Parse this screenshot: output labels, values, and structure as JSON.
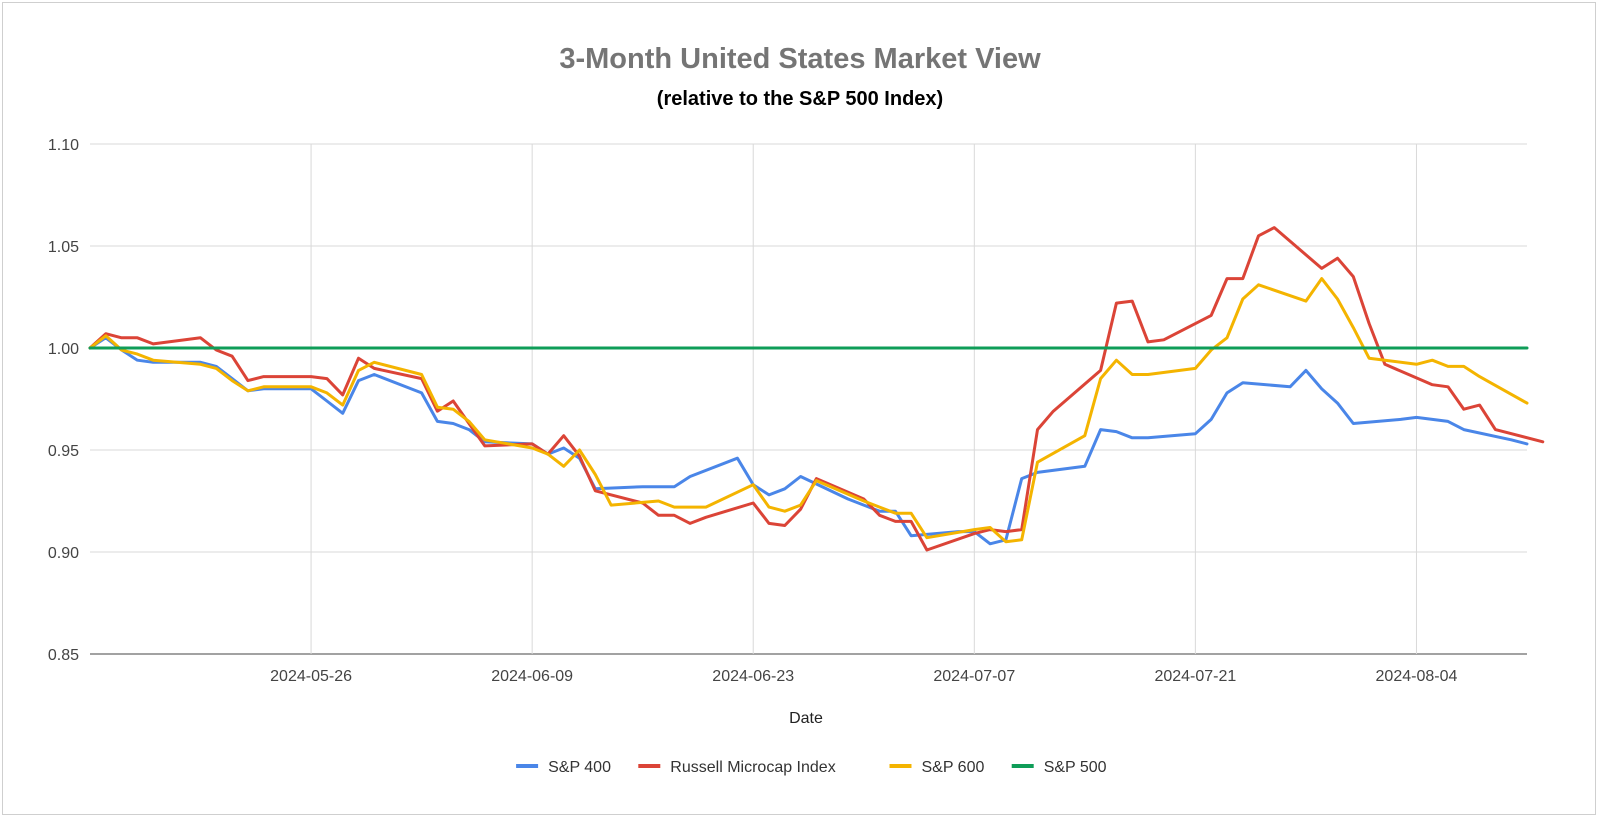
{
  "chart_data": {
    "type": "line",
    "title": "3-Month United States Market View",
    "subtitle": "(relative to the S&P 500 Index)",
    "xlabel": "Date",
    "ylabel": "",
    "ylim": [
      0.85,
      1.1
    ],
    "xlim": [
      "2024-05-12",
      "2024-08-11"
    ],
    "grid": true,
    "legend_position": "bottom",
    "y_ticks": [
      "0.85",
      "0.90",
      "0.95",
      "1.00",
      "1.05",
      "1.10"
    ],
    "x_ticks": [
      "2024-05-26",
      "2024-06-09",
      "2024-06-23",
      "2024-07-07",
      "2024-07-21",
      "2024-08-04"
    ],
    "series": [
      {
        "name": "S&P 400",
        "color": "#4a86e8",
        "points": [
          [
            "2024-05-12",
            1.0
          ],
          [
            "2024-05-13",
            1.005
          ],
          [
            "2024-05-14",
            0.999
          ],
          [
            "2024-05-15",
            0.994
          ],
          [
            "2024-05-16",
            0.993
          ],
          [
            "2024-05-19",
            0.993
          ],
          [
            "2024-05-20",
            0.991
          ],
          [
            "2024-05-21",
            0.985
          ],
          [
            "2024-05-22",
            0.979
          ],
          [
            "2024-05-23",
            0.98
          ],
          [
            "2024-05-26",
            0.98
          ],
          [
            "2024-05-27",
            0.974
          ],
          [
            "2024-05-28",
            0.968
          ],
          [
            "2024-05-29",
            0.984
          ],
          [
            "2024-05-30",
            0.987
          ],
          [
            "2024-06-02",
            0.978
          ],
          [
            "2024-06-03",
            0.964
          ],
          [
            "2024-06-04",
            0.963
          ],
          [
            "2024-06-05",
            0.96
          ],
          [
            "2024-06-06",
            0.954
          ],
          [
            "2024-06-09",
            0.953
          ],
          [
            "2024-06-10",
            0.948
          ],
          [
            "2024-06-11",
            0.951
          ],
          [
            "2024-06-12",
            0.946
          ],
          [
            "2024-06-13",
            0.931
          ],
          [
            "2024-06-16",
            0.932
          ],
          [
            "2024-06-17",
            0.932
          ],
          [
            "2024-06-18",
            0.932
          ],
          [
            "2024-06-19",
            0.937
          ],
          [
            "2024-06-22",
            0.946
          ],
          [
            "2024-06-23",
            0.933
          ],
          [
            "2024-06-24",
            0.928
          ],
          [
            "2024-06-25",
            0.931
          ],
          [
            "2024-06-26",
            0.937
          ],
          [
            "2024-06-29",
            0.926
          ],
          [
            "2024-06-30",
            0.923
          ],
          [
            "2024-07-01",
            0.92
          ],
          [
            "2024-07-02",
            0.92
          ],
          [
            "2024-07-03",
            0.908
          ],
          [
            "2024-07-06",
            0.91
          ],
          [
            "2024-07-07",
            0.91
          ],
          [
            "2024-07-08",
            0.904
          ],
          [
            "2024-07-09",
            0.906
          ],
          [
            "2024-07-10",
            0.936
          ],
          [
            "2024-07-11",
            0.939
          ],
          [
            "2024-07-14",
            0.942
          ],
          [
            "2024-07-15",
            0.96
          ],
          [
            "2024-07-16",
            0.959
          ],
          [
            "2024-07-17",
            0.956
          ],
          [
            "2024-07-18",
            0.956
          ],
          [
            "2024-07-21",
            0.958
          ],
          [
            "2024-07-22",
            0.965
          ],
          [
            "2024-07-23",
            0.978
          ],
          [
            "2024-07-24",
            0.983
          ],
          [
            "2024-07-27",
            0.981
          ],
          [
            "2024-07-28",
            0.989
          ],
          [
            "2024-07-29",
            0.98
          ],
          [
            "2024-07-30",
            0.973
          ],
          [
            "2024-07-31",
            0.963
          ],
          [
            "2024-08-03",
            0.965
          ],
          [
            "2024-08-04",
            0.966
          ],
          [
            "2024-08-05",
            0.965
          ],
          [
            "2024-08-06",
            0.964
          ],
          [
            "2024-08-07",
            0.96
          ],
          [
            "2024-08-10",
            0.955
          ],
          [
            "2024-08-11",
            0.953
          ]
        ]
      },
      {
        "name": "Russell Microcap Index",
        "color": "#db4437",
        "points": [
          [
            "2024-05-12",
            1.0
          ],
          [
            "2024-05-13",
            1.007
          ],
          [
            "2024-05-14",
            1.005
          ],
          [
            "2024-05-15",
            1.005
          ],
          [
            "2024-05-16",
            1.002
          ],
          [
            "2024-05-19",
            1.005
          ],
          [
            "2024-05-20",
            0.999
          ],
          [
            "2024-05-21",
            0.996
          ],
          [
            "2024-05-22",
            0.984
          ],
          [
            "2024-05-23",
            0.986
          ],
          [
            "2024-05-26",
            0.986
          ],
          [
            "2024-05-27",
            0.985
          ],
          [
            "2024-05-28",
            0.977
          ],
          [
            "2024-05-29",
            0.995
          ],
          [
            "2024-05-30",
            0.99
          ],
          [
            "2024-06-02",
            0.985
          ],
          [
            "2024-06-03",
            0.969
          ],
          [
            "2024-06-04",
            0.974
          ],
          [
            "2024-06-05",
            0.963
          ],
          [
            "2024-06-06",
            0.952
          ],
          [
            "2024-06-09",
            0.953
          ],
          [
            "2024-06-10",
            0.948
          ],
          [
            "2024-06-11",
            0.957
          ],
          [
            "2024-06-12",
            0.947
          ],
          [
            "2024-06-13",
            0.93
          ],
          [
            "2024-06-16",
            0.924
          ],
          [
            "2024-06-17",
            0.918
          ],
          [
            "2024-06-18",
            0.918
          ],
          [
            "2024-06-19",
            0.914
          ],
          [
            "2024-06-20",
            0.917
          ],
          [
            "2024-06-23",
            0.924
          ],
          [
            "2024-06-24",
            0.914
          ],
          [
            "2024-06-25",
            0.913
          ],
          [
            "2024-06-26",
            0.921
          ],
          [
            "2024-06-27",
            0.936
          ],
          [
            "2024-06-30",
            0.926
          ],
          [
            "2024-07-01",
            0.918
          ],
          [
            "2024-07-02",
            0.915
          ],
          [
            "2024-07-03",
            0.915
          ],
          [
            "2024-07-04",
            0.901
          ],
          [
            "2024-07-07",
            0.909
          ],
          [
            "2024-07-08",
            0.911
          ],
          [
            "2024-07-09",
            0.91
          ],
          [
            "2024-07-10",
            0.911
          ],
          [
            "2024-07-11",
            0.96
          ],
          [
            "2024-07-12",
            0.969
          ],
          [
            "2024-07-15",
            0.989
          ],
          [
            "2024-07-16",
            1.022
          ],
          [
            "2024-07-17",
            1.023
          ],
          [
            "2024-07-18",
            1.003
          ],
          [
            "2024-07-19",
            1.004
          ],
          [
            "2024-07-22",
            1.016
          ],
          [
            "2024-07-23",
            1.034
          ],
          [
            "2024-07-24",
            1.034
          ],
          [
            "2024-07-25",
            1.055
          ],
          [
            "2024-07-26",
            1.059
          ],
          [
            "2024-07-29",
            1.039
          ],
          [
            "2024-07-30",
            1.044
          ],
          [
            "2024-07-31",
            1.035
          ],
          [
            "2024-08-01",
            1.012
          ],
          [
            "2024-08-02",
            0.992
          ],
          [
            "2024-08-05",
            0.982
          ],
          [
            "2024-08-06",
            0.981
          ],
          [
            "2024-08-07",
            0.97
          ],
          [
            "2024-08-08",
            0.972
          ],
          [
            "2024-08-09",
            0.96
          ],
          [
            "2024-08-12",
            0.954
          ]
        ]
      },
      {
        "name": "S&P 600",
        "color": "#f4b400",
        "points": [
          [
            "2024-05-12",
            1.0
          ],
          [
            "2024-05-13",
            1.006
          ],
          [
            "2024-05-14",
            0.999
          ],
          [
            "2024-05-15",
            0.997
          ],
          [
            "2024-05-16",
            0.994
          ],
          [
            "2024-05-19",
            0.992
          ],
          [
            "2024-05-20",
            0.99
          ],
          [
            "2024-05-21",
            0.984
          ],
          [
            "2024-05-22",
            0.979
          ],
          [
            "2024-05-23",
            0.981
          ],
          [
            "2024-05-26",
            0.981
          ],
          [
            "2024-05-27",
            0.978
          ],
          [
            "2024-05-28",
            0.972
          ],
          [
            "2024-05-29",
            0.989
          ],
          [
            "2024-05-30",
            0.993
          ],
          [
            "2024-06-02",
            0.987
          ],
          [
            "2024-06-03",
            0.971
          ],
          [
            "2024-06-04",
            0.97
          ],
          [
            "2024-06-05",
            0.964
          ],
          [
            "2024-06-06",
            0.955
          ],
          [
            "2024-06-09",
            0.951
          ],
          [
            "2024-06-10",
            0.948
          ],
          [
            "2024-06-11",
            0.942
          ],
          [
            "2024-06-12",
            0.95
          ],
          [
            "2024-06-13",
            0.938
          ],
          [
            "2024-06-14",
            0.923
          ],
          [
            "2024-06-17",
            0.925
          ],
          [
            "2024-06-18",
            0.922
          ],
          [
            "2024-06-19",
            0.922
          ],
          [
            "2024-06-20",
            0.922
          ],
          [
            "2024-06-23",
            0.933
          ],
          [
            "2024-06-24",
            0.922
          ],
          [
            "2024-06-25",
            0.92
          ],
          [
            "2024-06-26",
            0.923
          ],
          [
            "2024-06-27",
            0.935
          ],
          [
            "2024-06-30",
            0.925
          ],
          [
            "2024-07-01",
            0.922
          ],
          [
            "2024-07-02",
            0.919
          ],
          [
            "2024-07-03",
            0.919
          ],
          [
            "2024-07-04",
            0.907
          ],
          [
            "2024-07-07",
            0.911
          ],
          [
            "2024-07-08",
            0.912
          ],
          [
            "2024-07-09",
            0.905
          ],
          [
            "2024-07-10",
            0.906
          ],
          [
            "2024-07-11",
            0.944
          ],
          [
            "2024-07-14",
            0.957
          ],
          [
            "2024-07-15",
            0.985
          ],
          [
            "2024-07-16",
            0.994
          ],
          [
            "2024-07-17",
            0.987
          ],
          [
            "2024-07-18",
            0.987
          ],
          [
            "2024-07-21",
            0.99
          ],
          [
            "2024-07-22",
            0.999
          ],
          [
            "2024-07-23",
            1.005
          ],
          [
            "2024-07-24",
            1.024
          ],
          [
            "2024-07-25",
            1.031
          ],
          [
            "2024-07-28",
            1.023
          ],
          [
            "2024-07-29",
            1.034
          ],
          [
            "2024-07-30",
            1.024
          ],
          [
            "2024-07-31",
            1.01
          ],
          [
            "2024-08-01",
            0.995
          ],
          [
            "2024-08-04",
            0.992
          ],
          [
            "2024-08-05",
            0.994
          ],
          [
            "2024-08-06",
            0.991
          ],
          [
            "2024-08-07",
            0.991
          ],
          [
            "2024-08-08",
            0.986
          ],
          [
            "2024-08-11",
            0.973
          ]
        ]
      },
      {
        "name": "S&P 500",
        "color": "#0f9d58",
        "points": [
          [
            "2024-05-12",
            1.0
          ],
          [
            "2024-08-11",
            1.0
          ]
        ]
      }
    ]
  }
}
